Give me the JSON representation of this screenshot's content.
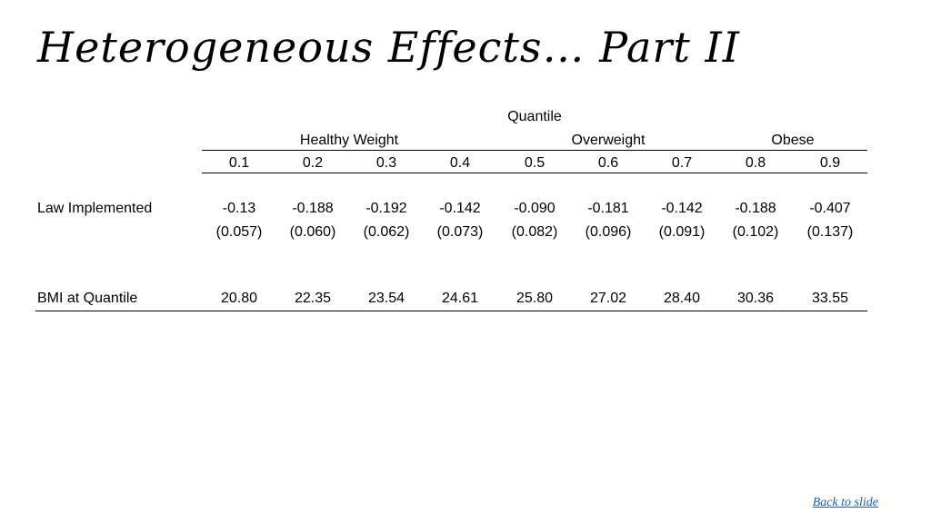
{
  "slide": {
    "title": "Heterogeneous Effects… Part II",
    "back_link": "Back to slide"
  },
  "table": {
    "header": {
      "super": "Quantile",
      "groups": [
        "Healthy Weight",
        "Overweight",
        "Obese"
      ],
      "quantiles": [
        "0.1",
        "0.2",
        "0.3",
        "0.4",
        "0.5",
        "0.6",
        "0.7",
        "0.8",
        "0.9"
      ]
    },
    "rows": [
      {
        "label": "Law Implemented",
        "estimates": [
          "-0.13",
          "-0.188",
          "-0.192",
          "-0.142",
          "-0.090",
          "-0.181",
          "-0.142",
          "-0.188",
          "-0.407"
        ],
        "std_errors": [
          "(0.057)",
          "(0.060)",
          "(0.062)",
          "(0.073)",
          "(0.082)",
          "(0.096)",
          "(0.091)",
          "(0.102)",
          "(0.137)"
        ]
      },
      {
        "label": "BMI at Quantile",
        "estimates": [
          "20.80",
          "22.35",
          "23.54",
          "24.61",
          "25.80",
          "27.02",
          "28.40",
          "30.36",
          "33.55"
        ]
      }
    ]
  }
}
